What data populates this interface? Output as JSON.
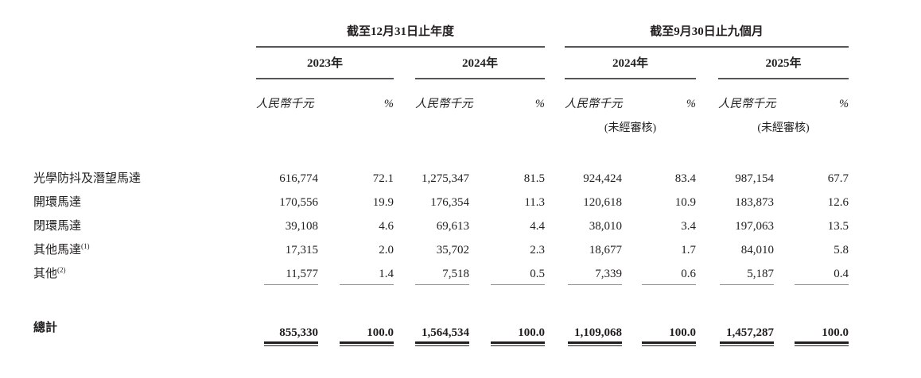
{
  "table": {
    "groups": [
      {
        "title": "截至12月31日止年度",
        "years": [
          "2023年",
          "2024年"
        ]
      },
      {
        "title": "截至9月30日止九個月",
        "years": [
          "2024年",
          "2025年"
        ],
        "note": "(未經審核)"
      }
    ],
    "unit_label": "人民幣千元",
    "percent_label": "%",
    "rows": [
      {
        "label": "光學防抖及潛望馬達",
        "sup": "",
        "values": [
          "616,774",
          "72.1",
          "1,275,347",
          "81.5",
          "924,424",
          "83.4",
          "987,154",
          "67.7"
        ]
      },
      {
        "label": "開環馬達",
        "sup": "",
        "values": [
          "170,556",
          "19.9",
          "176,354",
          "11.3",
          "120,618",
          "10.9",
          "183,873",
          "12.6"
        ]
      },
      {
        "label": "閉環馬達",
        "sup": "",
        "values": [
          "39,108",
          "4.6",
          "69,613",
          "4.4",
          "38,010",
          "3.4",
          "197,063",
          "13.5"
        ]
      },
      {
        "label": "其他馬達",
        "sup": "(1)",
        "values": [
          "17,315",
          "2.0",
          "35,702",
          "2.3",
          "18,677",
          "1.7",
          "84,010",
          "5.8"
        ]
      },
      {
        "label": "其他",
        "sup": "(2)",
        "values": [
          "11,577",
          "1.4",
          "7,518",
          "0.5",
          "7,339",
          "0.6",
          "5,187",
          "0.4"
        ]
      }
    ],
    "total": {
      "label": "總計",
      "values": [
        "855,330",
        "100.0",
        "1,564,534",
        "100.0",
        "1,109,068",
        "100.0",
        "1,457,287",
        "100.0"
      ]
    }
  }
}
